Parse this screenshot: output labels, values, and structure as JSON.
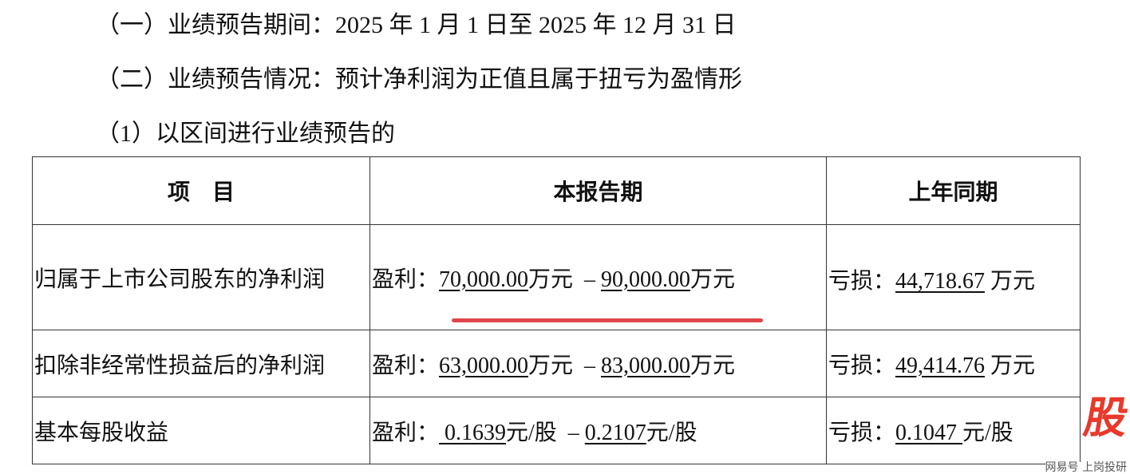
{
  "lines": [
    "（一）业绩预告期间：2025 年 1 月 1 日至 2025 年 12 月 31 日",
    "（二）业绩预告情况：预计净利润为正值且属于扭亏为盈情形",
    "（1）以区间进行业绩预告的"
  ],
  "table": {
    "headers": [
      "项　目",
      "本报告期",
      "上年同期"
    ],
    "rows": [
      {
        "item": "归属于上市公司股东的净利润",
        "cur_prefix": "盈利：",
        "cur_low": "70,000.00",
        "unit1": "万元  –",
        "cur_high": "90,000.00",
        "unit2": "万元",
        "prev_prefix": "亏损：",
        "prev": "44,718.67",
        "prev_unit": "万元"
      },
      {
        "item": "扣除非经常性损益后的净利润",
        "cur_prefix": "盈利：",
        "cur_low": "63,000.00",
        "unit1": "万元  –",
        "cur_high": "83,000.00",
        "unit2": "万元",
        "prev_prefix": "亏损：",
        "prev": "49,414.76",
        "prev_unit": "万元"
      },
      {
        "item": "基本每股收益",
        "cur_prefix": "盈利：",
        "cur_low": " 0.1639",
        "unit1": "元/股  –",
        "cur_high": "0.2107",
        "unit2": "元/股",
        "prev_prefix": "亏损：",
        "prev": "0.1047 ",
        "prev_unit": "元/股"
      }
    ]
  },
  "watermark": {
    "logo": "股",
    "text": "网易号 上岗投研",
    "color": "#e8392b"
  }
}
